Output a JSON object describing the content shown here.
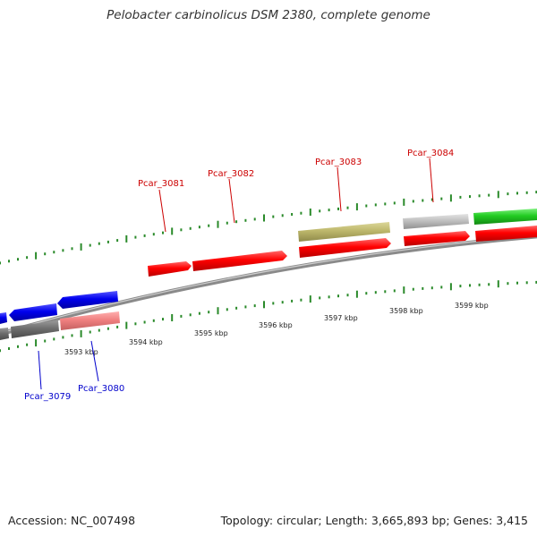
{
  "title": "Pelobacter carbinolicus DSM 2380, complete genome",
  "footer": {
    "accession": "Accession: NC_007498",
    "stats": "Topology: circular; Length: 3,665,893 bp; Genes: 3,415"
  },
  "colors": {
    "forward": "#ff0000",
    "reverse": "#0000ee",
    "reverse_light": "#f08080",
    "khaki": "#bdb76b",
    "gray": "#c0c0c0",
    "green": "#22cc22",
    "dark_gray": "#707070",
    "backbone": "#8a8a8a",
    "ticks": "#2a8a2a",
    "label_forward": "#cc0000",
    "label_reverse": "#0000cc"
  },
  "kbp_labels": [
    "3593 kbp",
    "3594 kbp",
    "3595 kbp",
    "3596 kbp",
    "3597 kbp",
    "3598 kbp",
    "3599 kbp"
  ],
  "gene_labels": {
    "top": [
      "Pcar_3081",
      "Pcar_3082",
      "Pcar_3083",
      "Pcar_3084"
    ],
    "bottom": [
      "Pcar_3079",
      "Pcar_3080"
    ]
  }
}
